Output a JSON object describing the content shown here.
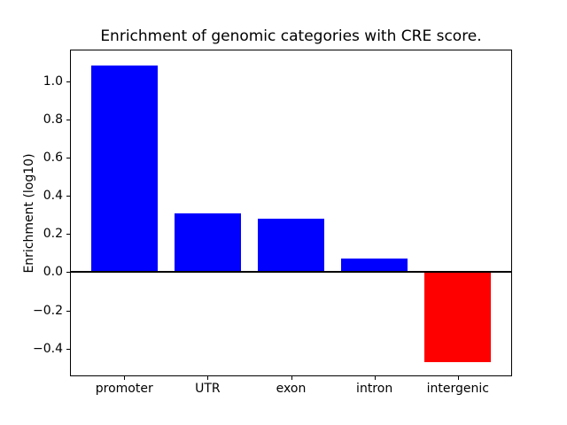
{
  "chart_data": {
    "type": "bar",
    "title": "Enrichment of genomic categories with CRE score.",
    "xlabel": "",
    "ylabel": "Enrichment (log10)",
    "categories": [
      "promoter",
      "UTR",
      "exon",
      "intron",
      "intergenic"
    ],
    "values": [
      1.08,
      0.31,
      0.28,
      0.07,
      -0.47
    ],
    "bar_colors": [
      "#0000ff",
      "#0000ff",
      "#0000ff",
      "#0000ff",
      "#ff0000"
    ],
    "positive_color": "#0000ff",
    "negative_color": "#ff0000",
    "ylim": [
      -0.54,
      1.16
    ],
    "yticks": [
      1.0,
      0.8,
      0.6,
      0.4,
      0.2,
      0.0,
      -0.2,
      -0.4
    ],
    "ytick_labels": [
      "1.0",
      "0.8",
      "0.6",
      "0.4",
      "0.2",
      "0.0",
      "−0.2",
      "−0.4"
    ],
    "zero_line": true,
    "grid": false,
    "legend": "none",
    "background": "#ffffff",
    "spine_color": "#000000",
    "text_color": "#000000"
  }
}
